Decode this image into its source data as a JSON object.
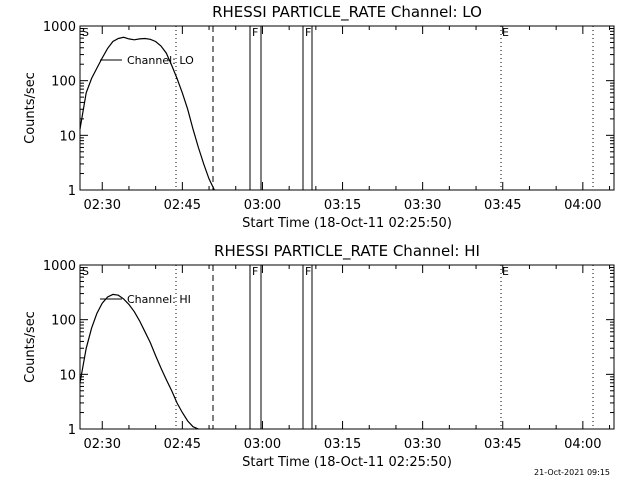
{
  "chart_data": [
    {
      "type": "line",
      "title": "RHESSI PARTICLE_RATE Channel: LO",
      "xlabel": "Start Time (18-Oct-11 02:25:50)",
      "ylabel": "Counts/sec",
      "yscale": "log",
      "ylim": [
        1,
        1000
      ],
      "xlim_minutes_after_start": [
        0,
        100
      ],
      "x_tick_labels": [
        "02:30",
        "02:45",
        "03:00",
        "03:15",
        "03:30",
        "03:45",
        "04:00"
      ],
      "y_tick_labels": [
        "1",
        "10",
        "100",
        "1000"
      ],
      "legend": "Channel: LO",
      "event_markers": [
        "S",
        "F",
        "F",
        "E"
      ],
      "series": [
        {
          "name": "Channel: LO",
          "x_time": [
            "02:25:50",
            "02:27",
            "02:28",
            "02:29",
            "02:30",
            "02:31",
            "02:32",
            "02:33",
            "02:34",
            "02:35",
            "02:36",
            "02:37",
            "02:38",
            "02:39",
            "02:40",
            "02:41",
            "02:42",
            "02:43",
            "02:44",
            "02:45",
            "02:46",
            "02:47",
            "02:48",
            "02:49",
            "02:50",
            "02:51"
          ],
          "values": [
            13,
            60,
            110,
            170,
            260,
            390,
            520,
            590,
            620,
            580,
            560,
            580,
            590,
            570,
            520,
            430,
            320,
            190,
            110,
            60,
            30,
            13,
            6,
            3,
            1.6,
            1
          ]
        }
      ]
    },
    {
      "type": "line",
      "title": "RHESSI PARTICLE_RATE Channel: HI",
      "xlabel": "Start Time (18-Oct-11 02:25:50)",
      "ylabel": "Counts/sec",
      "yscale": "log",
      "ylim": [
        1,
        1000
      ],
      "xlim_minutes_after_start": [
        0,
        100
      ],
      "x_tick_labels": [
        "02:30",
        "02:45",
        "03:00",
        "03:15",
        "03:30",
        "03:45",
        "04:00"
      ],
      "y_tick_labels": [
        "1",
        "10",
        "100",
        "1000"
      ],
      "legend": "Channel: HI",
      "event_markers": [
        "S",
        "F",
        "F",
        "E"
      ],
      "series": [
        {
          "name": "Channel: HI",
          "x_time": [
            "02:25:50",
            "02:27",
            "02:28",
            "02:29",
            "02:30",
            "02:31",
            "02:32",
            "02:33",
            "02:34",
            "02:35",
            "02:36",
            "02:37",
            "02:38",
            "02:39",
            "02:40",
            "02:41",
            "02:42",
            "02:43",
            "02:44",
            "02:45",
            "02:46",
            "02:47",
            "02:48"
          ],
          "values": [
            7,
            30,
            70,
            130,
            200,
            260,
            290,
            280,
            240,
            190,
            140,
            95,
            60,
            38,
            22,
            13,
            8,
            5,
            3,
            2,
            1.4,
            1.1,
            1
          ]
        }
      ]
    }
  ],
  "timestamp": "21-Oct-2021 09:15"
}
